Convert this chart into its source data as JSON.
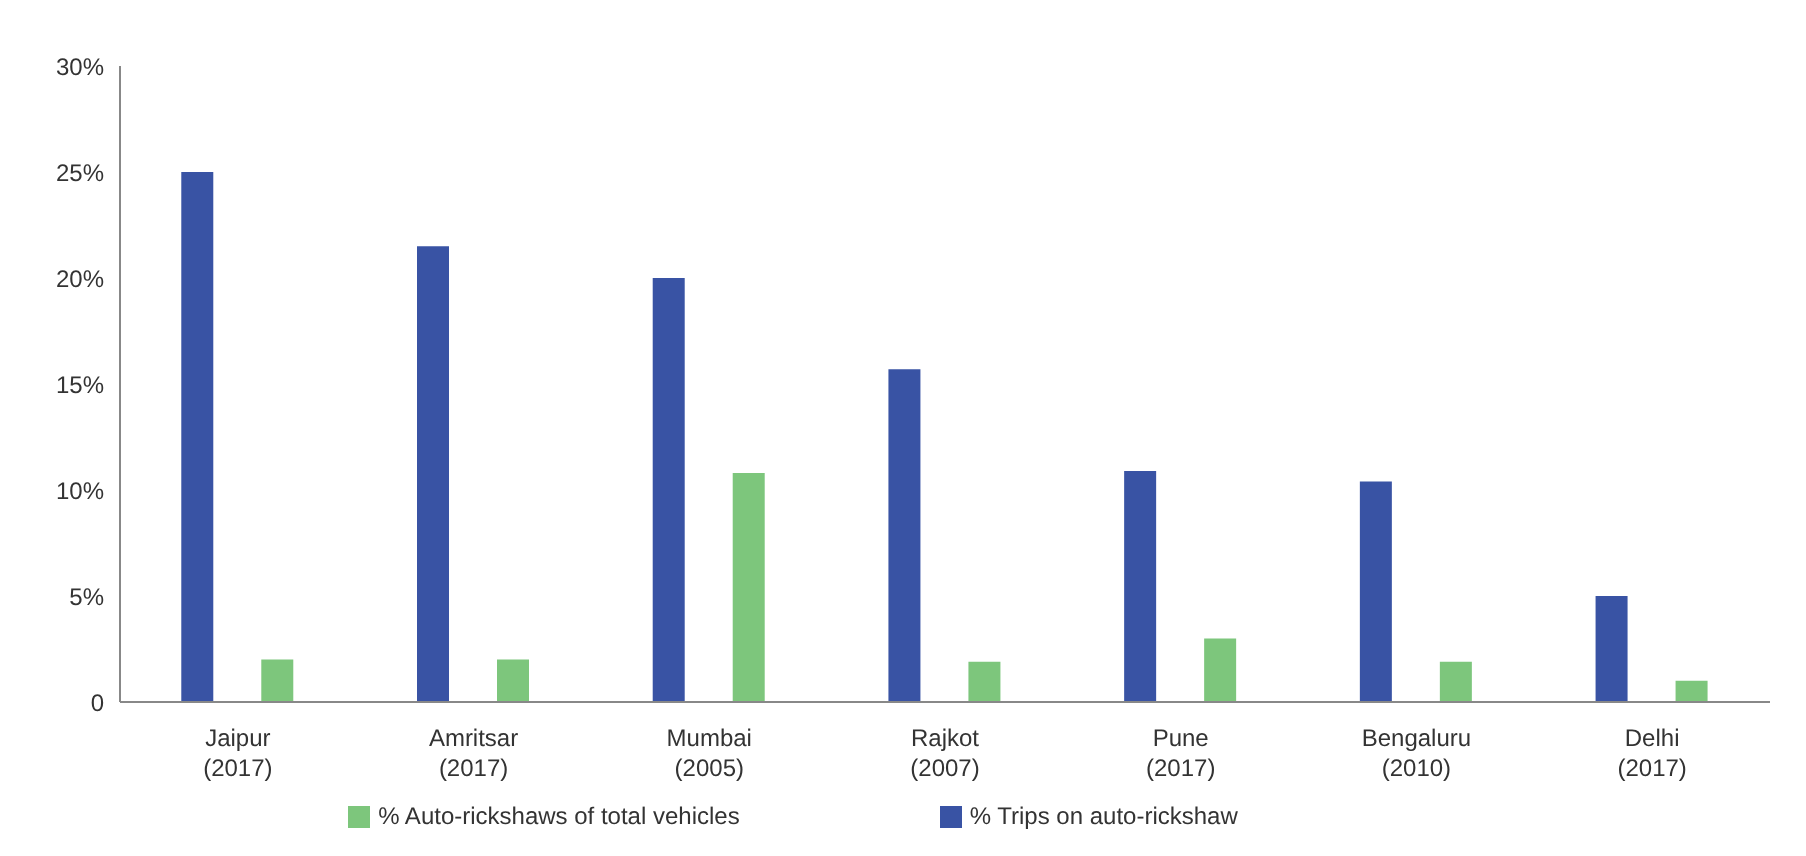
{
  "chart_data": {
    "type": "bar",
    "categories": [
      "Jaipur\n(2017)",
      "Amritsar\n(2017)",
      "Mumbai\n(2005)",
      "Rajkot\n(2007)",
      "Pune\n(2017)",
      "Bengaluru\n(2010)",
      "Delhi\n(2017)"
    ],
    "series": [
      {
        "name": "% Trips on auto-rickshaw",
        "color": "#3953a4",
        "values": [
          25,
          21.5,
          20,
          15.7,
          10.9,
          10.4,
          5
        ]
      },
      {
        "name": "% Auto-rickshaws of total vehicles",
        "color": "#7dc67c",
        "values": [
          2,
          2,
          10.8,
          1.9,
          3,
          1.9,
          1
        ]
      }
    ],
    "ylim": [
      0,
      30
    ],
    "yticks": [
      {
        "value": 0,
        "label": "0"
      },
      {
        "value": 5,
        "label": "5%"
      },
      {
        "value": 10,
        "label": "10%"
      },
      {
        "value": 15,
        "label": "15%"
      },
      {
        "value": 20,
        "label": "20%"
      },
      {
        "value": 25,
        "label": "25%"
      },
      {
        "value": 30,
        "label": "30%"
      }
    ],
    "grid": false,
    "legend": "bottom"
  }
}
